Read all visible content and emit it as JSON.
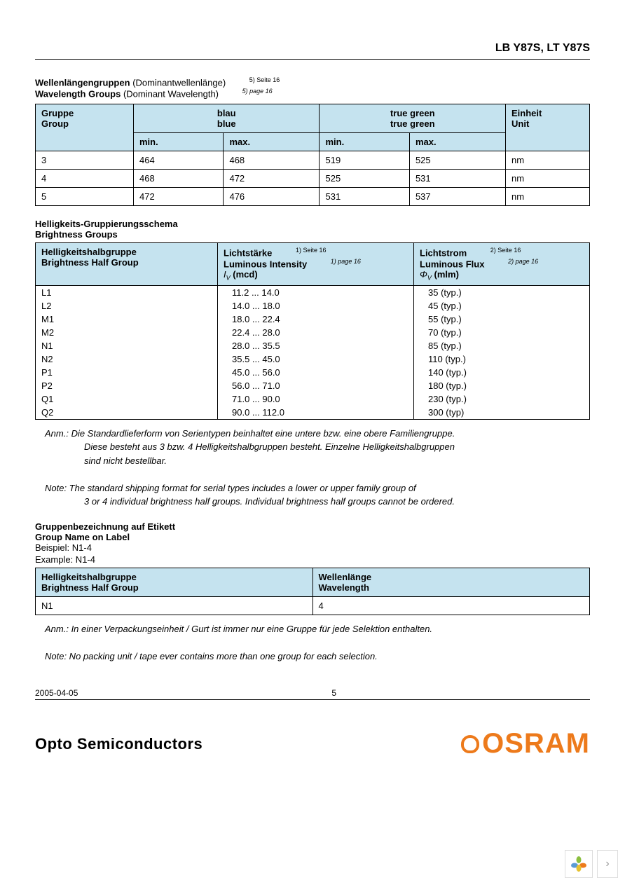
{
  "colors": {
    "header_bg": "#c5e3ef",
    "text": "#000000",
    "brand": "#ed7a1b"
  },
  "header": {
    "title": "LB Y87S, LT Y87S"
  },
  "wavelength": {
    "title_de": "Wellenlängengruppen",
    "title_de_light": "(Dominantwellenlänge)",
    "title_en": "Wavelength Groups",
    "title_en_light": "(Dominant Wavelength)",
    "ref_de": "5) Seite 16",
    "ref_en": "5) page 16",
    "headers": {
      "group_de": "Gruppe",
      "group_en": "Group",
      "blue_de": "blau",
      "blue_en": "blue",
      "green_de": "true green",
      "green_en": "true green",
      "unit_de": "Einheit",
      "unit_en": "Unit",
      "min": "min.",
      "max": "max."
    },
    "rows": [
      {
        "g": "3",
        "bmin": "464",
        "bmax": "468",
        "gmin": "519",
        "gmax": "525",
        "unit": "nm"
      },
      {
        "g": "4",
        "bmin": "468",
        "bmax": "472",
        "gmin": "525",
        "gmax": "531",
        "unit": "nm"
      },
      {
        "g": "5",
        "bmin": "472",
        "bmax": "476",
        "gmin": "531",
        "gmax": "537",
        "unit": "nm"
      }
    ]
  },
  "brightness": {
    "title_de": "Helligkeits-Gruppierungsschema",
    "title_en": "Brightness Groups",
    "headers": {
      "half_de": "Helligkeitshalbgruppe",
      "half_en": "Brightness Half Group",
      "li_de": "Lichtstärke",
      "li_en": "Luminous Intensity",
      "li_sym": "I",
      "li_sub": "V",
      "li_unit": "(mcd)",
      "li_ref_de": "1) Seite 16",
      "li_ref_en": "1) page 16",
      "lf_de": "Lichtstrom",
      "lf_en": "Luminous Flux",
      "lf_sym": "Φ",
      "lf_sub": "V",
      "lf_unit": "(mlm)",
      "lf_ref_de": "2) Seite 16",
      "lf_ref_en": "2) page 16"
    },
    "rows": [
      {
        "g": "L1",
        "iv": "11.2 ... 14.0",
        "phi": "35 (typ.)"
      },
      {
        "g": "L2",
        "iv": "14.0 ... 18.0",
        "phi": "45 (typ.)"
      },
      {
        "g": "M1",
        "iv": "18.0 ... 22.4",
        "phi": "55 (typ.)"
      },
      {
        "g": "M2",
        "iv": "22.4 ... 28.0",
        "phi": "70 (typ.)"
      },
      {
        "g": "N1",
        "iv": "28.0 ... 35.5",
        "phi": "85 (typ.)"
      },
      {
        "g": "N2",
        "iv": "35.5 ... 45.0",
        "phi": "110 (typ.)"
      },
      {
        "g": "P1",
        "iv": "45.0 ... 56.0",
        "phi": "140 (typ.)"
      },
      {
        "g": "P2",
        "iv": "56.0 ... 71.0",
        "phi": "180 (typ.)"
      },
      {
        "g": "Q1",
        "iv": "71.0 ... 90.0",
        "phi": "230 (typ.)"
      },
      {
        "g": "Q2",
        "iv": "90.0 ... 112.0",
        "phi": "300 (typ)"
      }
    ]
  },
  "notes1": {
    "de_l1": "Anm.: Die Standardlieferform von Serientypen beinhaltet eine untere bzw. eine obere Familiengruppe.",
    "de_l2": "Diese besteht aus 3 bzw. 4 Helligkeitshalbgruppen besteht. Einzelne Helligkeitshalbgruppen",
    "de_l3": "sind nicht bestellbar.",
    "en_l1": "Note: The standard shipping format for serial types includes a lower or upper family group of",
    "en_l2": "3 or 4 individual brightness half groups. Individual brightness half groups cannot be ordered."
  },
  "label": {
    "title_de": "Gruppenbezeichnung auf Etikett",
    "title_en": "Group Name on Label",
    "example_de": "Beispiel: N1-4",
    "example_en": "Example: N1-4",
    "headers": {
      "half_de": "Helligkeitshalbgruppe",
      "half_en": "Brightness Half Group",
      "wl_de": "Wellenlänge",
      "wl_en": "Wavelength"
    },
    "row": {
      "hg": "N1",
      "wl": "4"
    }
  },
  "notes2": {
    "de": "Anm.: In einer Verpackungseinheit / Gurt ist immer nur eine Gruppe für jede Selektion enthalten.",
    "en": "Note: No packing unit / tape ever contains more than one group for each selection."
  },
  "footer": {
    "date": "2005-04-05",
    "page": "5",
    "opto": "Opto Semiconductors",
    "brand": "OSRAM"
  }
}
